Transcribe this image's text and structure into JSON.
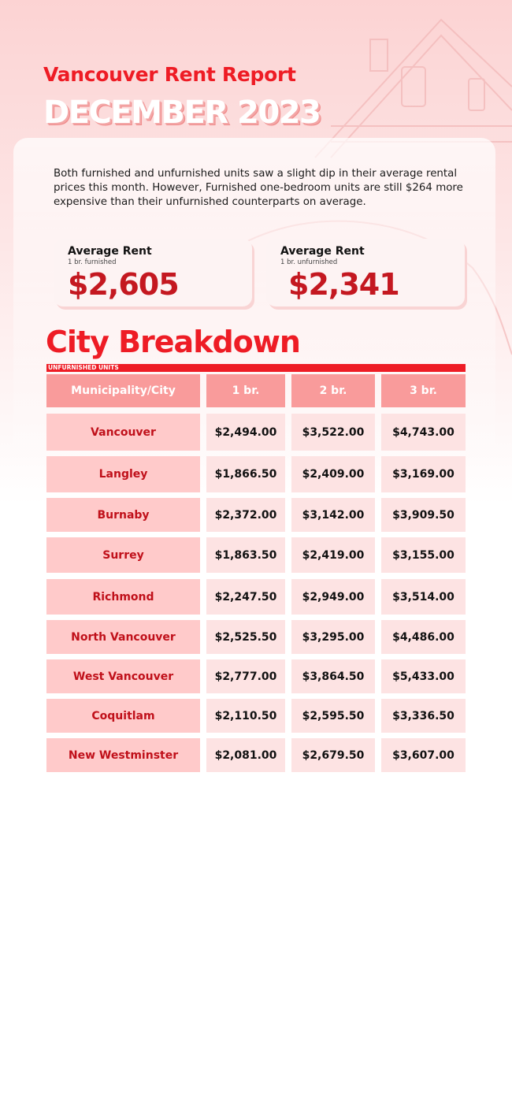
{
  "header": {
    "title": "Vancouver Rent Report",
    "subtitle": "DECEMBER 2023"
  },
  "intro": "Both furnished and unfurnished units saw a slight dip in their average rental prices this month. However, Furnished one-bedroom units are still $264 more expensive than their unfurnished counterparts on average.",
  "stats": [
    {
      "label": "Average Rent",
      "sublabel": "1 br. furnished",
      "value": "$2,605"
    },
    {
      "label": "Average Rent",
      "sublabel": "1 br. unfurnished",
      "value": "$2,341"
    }
  ],
  "section": {
    "title": "City Breakdown",
    "label": "UNFURNISHED UNITS"
  },
  "table": {
    "headers": [
      "Municipality/City",
      "1 br.",
      "2 br.",
      "3 br."
    ],
    "rows": [
      [
        "Vancouver",
        "$2,494.00",
        "$3,522.00",
        "$4,743.00"
      ],
      [
        "Langley",
        "$1,866.50",
        "$2,409.00",
        "$3,169.00"
      ],
      [
        "Burnaby",
        "$2,372.00",
        "$3,142.00",
        "$3,909.50"
      ],
      [
        "Surrey",
        "$1,863.50",
        "$2,419.00",
        "$3,155.00"
      ],
      [
        "Richmond",
        "$2,247.50",
        "$2,949.00",
        "$3,514.00"
      ],
      [
        "North Vancouver",
        "$2,525.50",
        "$3,295.00",
        "$4,486.00"
      ],
      [
        "West Vancouver",
        "$2,777.00",
        "$3,864.50",
        "$5,433.00"
      ],
      [
        "Coquitlam",
        "$2,110.50",
        "$2,595.50",
        "$3,336.50"
      ],
      [
        "New Westminster",
        "$2,081.00",
        "$2,679.50",
        "$3,607.00"
      ]
    ]
  }
}
